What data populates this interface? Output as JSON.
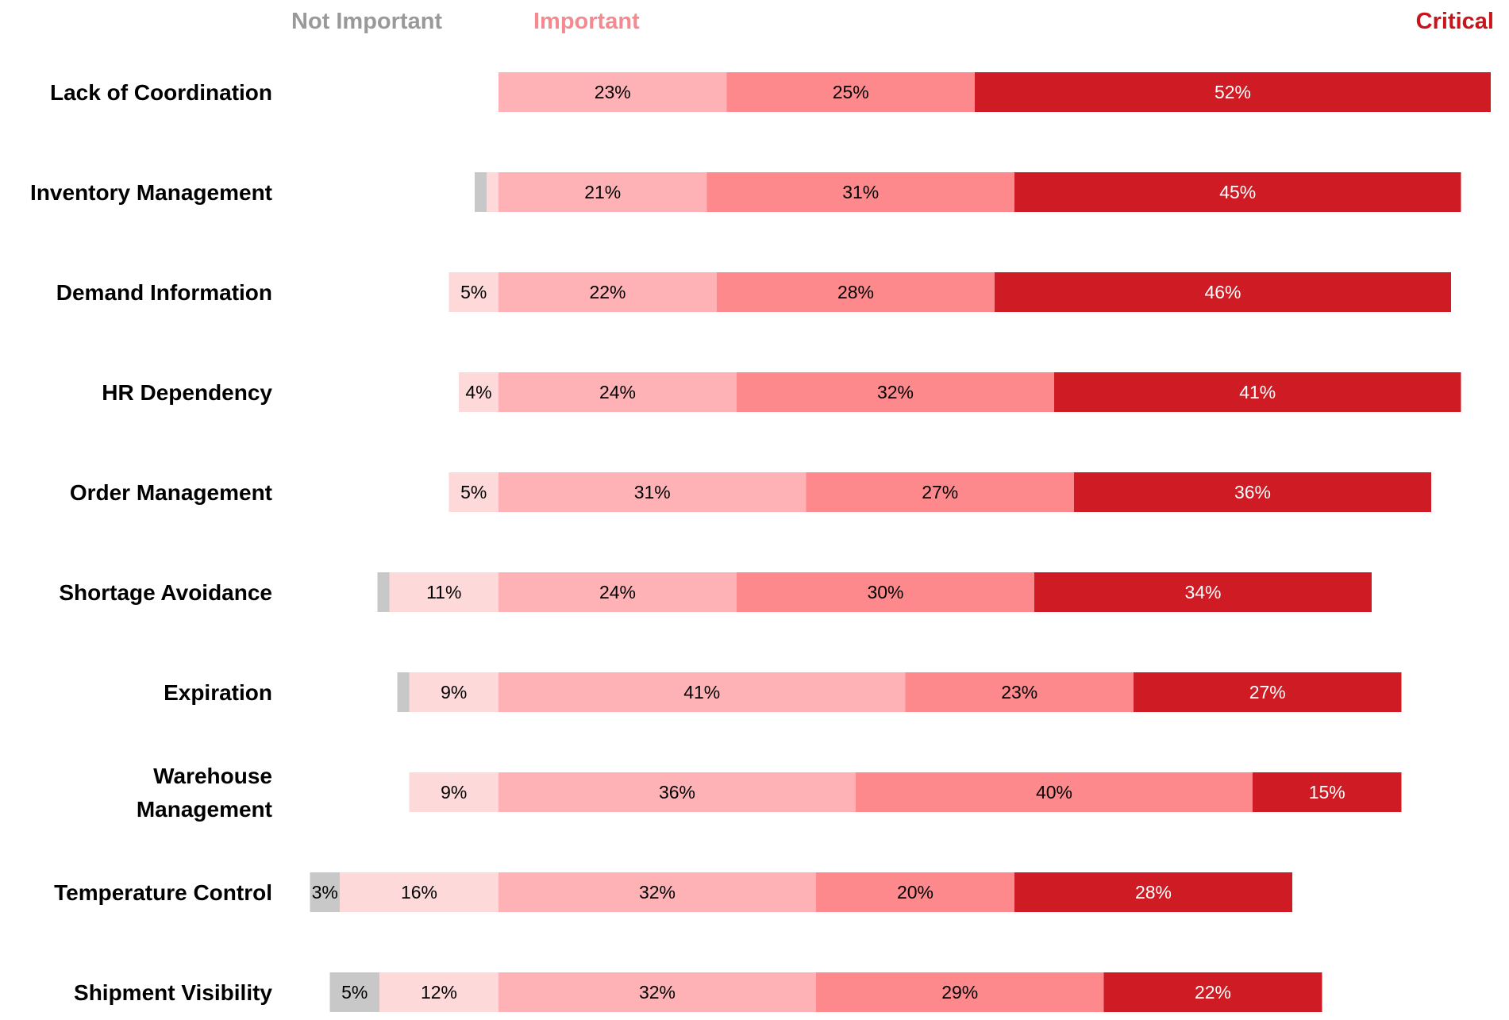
{
  "chart_data": {
    "type": "bar",
    "orientation": "horizontal",
    "stacked": "diverging",
    "legend_headers": [
      {
        "label": "Not Important",
        "color": "#999999"
      },
      {
        "label": "Important",
        "color": "#f48a8f"
      },
      {
        "label": "Critical",
        "color": "#c8151c"
      }
    ],
    "segment_colors": [
      "#c8c8c8",
      "#fdd9da",
      "#feb2b6",
      "#fe898c",
      "#cf1c24"
    ],
    "label_colors": [
      "#000000",
      "#000000",
      "#000000",
      "#000000",
      "#ffffff"
    ],
    "categories": [
      [
        "Lack of Coordination"
      ],
      [
        "Inventory Management"
      ],
      [
        "Demand Information"
      ],
      [
        "HR Dependency"
      ],
      [
        "Order Management"
      ],
      [
        "Shortage Avoidance"
      ],
      [
        "Expiration"
      ],
      [
        "Warehouse",
        "Management"
      ],
      [
        "Temperature Control"
      ],
      [
        "Shipment Visibility"
      ]
    ],
    "rows": [
      {
        "values": [
          0,
          0,
          23,
          25,
          52
        ],
        "labels": [
          "",
          "",
          "23%",
          "25%",
          "52%"
        ]
      },
      {
        "values": [
          1.2,
          1.2,
          21,
          31,
          45
        ],
        "labels": [
          "",
          "",
          "21%",
          "31%",
          "45%"
        ]
      },
      {
        "values": [
          0,
          5,
          22,
          28,
          46
        ],
        "labels": [
          "",
          "5%",
          "22%",
          "28%",
          "46%"
        ]
      },
      {
        "values": [
          0,
          4,
          24,
          32,
          41
        ],
        "labels": [
          "",
          "4%",
          "24%",
          "32%",
          "41%"
        ]
      },
      {
        "values": [
          0,
          5,
          31,
          27,
          36
        ],
        "labels": [
          "",
          "5%",
          "31%",
          "27%",
          "36%"
        ]
      },
      {
        "values": [
          1.2,
          11,
          24,
          30,
          34
        ],
        "labels": [
          "",
          "11%",
          "24%",
          "30%",
          "34%"
        ]
      },
      {
        "values": [
          1.2,
          9,
          41,
          23,
          27
        ],
        "labels": [
          "",
          "9%",
          "41%",
          "23%",
          "27%"
        ]
      },
      {
        "values": [
          0,
          9,
          36,
          40,
          15
        ],
        "labels": [
          "",
          "9%",
          "36%",
          "40%",
          "15%"
        ]
      },
      {
        "values": [
          3,
          16,
          32,
          20,
          28
        ],
        "labels": [
          "3%",
          "16%",
          "32%",
          "20%",
          "28%"
        ]
      },
      {
        "values": [
          5,
          12,
          32,
          29,
          22
        ],
        "labels": [
          "5%",
          "12%",
          "32%",
          "29%",
          "22%"
        ]
      }
    ]
  }
}
